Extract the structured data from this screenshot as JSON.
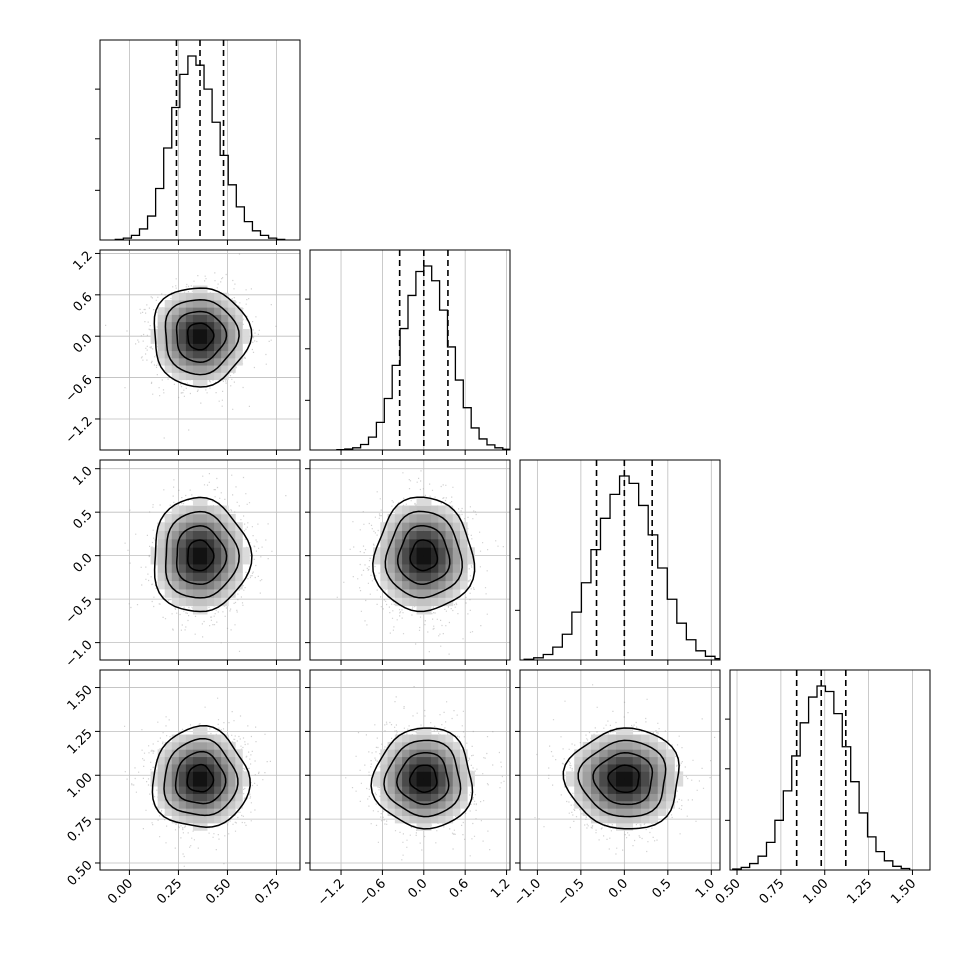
{
  "chart_data": {
    "type": "corner",
    "grid": true,
    "variables": [
      {
        "range": [
          -0.15,
          0.87
        ],
        "ticks": [
          0.0,
          0.25,
          0.5,
          0.75
        ],
        "tick_labels": [
          "0.00",
          "0.25",
          "0.50",
          "0.75"
        ],
        "mean": 0.36,
        "std": 0.12,
        "quantiles": [
          0.24,
          0.36,
          0.48
        ]
      },
      {
        "range": [
          -1.65,
          1.25
        ],
        "ticks": [
          -1.2,
          -0.6,
          0.0,
          0.6,
          1.2
        ],
        "tick_labels": [
          "−1.2",
          "−0.6",
          "0.0",
          "0.6",
          "1.2"
        ],
        "mean": 0.0,
        "std": 0.35,
        "quantiles": [
          -0.35,
          0.0,
          0.35
        ]
      },
      {
        "range": [
          -1.2,
          1.1
        ],
        "ticks": [
          -1.0,
          -0.5,
          0.0,
          0.5,
          1.0
        ],
        "tick_labels": [
          "−1.0",
          "−0.5",
          "0.0",
          "0.5",
          "1.0"
        ],
        "mean": 0.0,
        "std": 0.32,
        "quantiles": [
          -0.32,
          0.0,
          0.32
        ]
      },
      {
        "range": [
          0.46,
          1.6
        ],
        "ticks": [
          0.5,
          0.75,
          1.0,
          1.25,
          1.5
        ],
        "tick_labels": [
          "0.50",
          "0.75",
          "1.00",
          "1.25",
          "1.50"
        ],
        "mean": 0.98,
        "std": 0.14,
        "quantiles": [
          0.84,
          0.98,
          1.12
        ]
      }
    ],
    "histograms": [
      [
        0.003,
        0.01,
        0.025,
        0.06,
        0.13,
        0.28,
        0.5,
        0.72,
        0.9,
        1.0,
        0.95,
        0.82,
        0.64,
        0.46,
        0.3,
        0.18,
        0.1,
        0.05,
        0.025,
        0.01,
        0.003
      ],
      [
        0.002,
        0.005,
        0.012,
        0.03,
        0.07,
        0.15,
        0.28,
        0.46,
        0.66,
        0.84,
        0.97,
        1.0,
        0.92,
        0.76,
        0.56,
        0.38,
        0.23,
        0.12,
        0.06,
        0.028,
        0.012,
        0.004
      ],
      [
        0.004,
        0.012,
        0.03,
        0.07,
        0.14,
        0.26,
        0.42,
        0.6,
        0.77,
        0.9,
        1.0,
        0.96,
        0.84,
        0.68,
        0.5,
        0.33,
        0.2,
        0.11,
        0.05,
        0.02,
        0.007
      ],
      [
        0.005,
        0.014,
        0.035,
        0.075,
        0.15,
        0.27,
        0.43,
        0.62,
        0.8,
        0.94,
        1.0,
        0.97,
        0.85,
        0.67,
        0.48,
        0.31,
        0.18,
        0.1,
        0.05,
        0.02,
        0.008
      ]
    ]
  }
}
